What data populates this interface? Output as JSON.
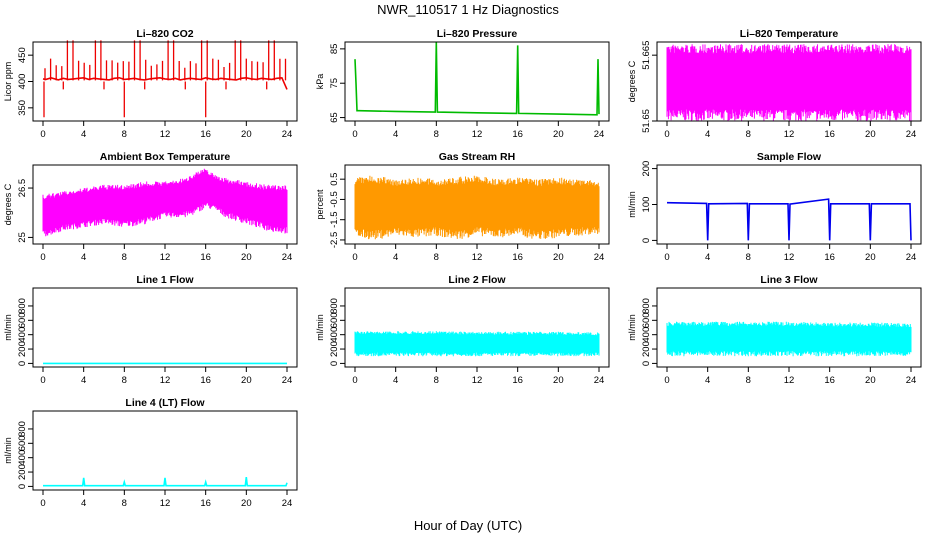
{
  "title": "NWR_110517  1 Hz Diagnostics",
  "xlabel": "Hour of Day (UTC)",
  "colors": {
    "red": "#ee0000",
    "green": "#00bb00",
    "magenta": "#ff00ff",
    "orange": "#ff9900",
    "blue": "#0000ee",
    "cyan": "#00ffff"
  },
  "chart_data": [
    {
      "type": "line",
      "title": "Li–820 CO2",
      "ylabel": "Licor ppm",
      "color": "#ee0000",
      "xlim": [
        0,
        24
      ],
      "ylim": [
        325,
        475
      ],
      "xticks": [
        0,
        4,
        8,
        12,
        16,
        20,
        24
      ],
      "yticks": [
        350,
        400,
        450
      ],
      "series": [
        {
          "name": "",
          "x": [
            0,
            0.3,
            0.8,
            1.5,
            2,
            2.5,
            3,
            3.5,
            4,
            4.5,
            5,
            5.5,
            6,
            6.5,
            7,
            7.5,
            8,
            8.5,
            9,
            9.5,
            10,
            10.5,
            11,
            11.5,
            12,
            12.5,
            13,
            13.5,
            14,
            14.5,
            15,
            15.5,
            16,
            16.5,
            17,
            17.5,
            18,
            18.5,
            19,
            19.5,
            20,
            20.5,
            21,
            21.5,
            22,
            22.5,
            23,
            23.5,
            24
          ],
          "y": [
            405,
            404,
            407,
            403,
            406,
            404,
            405,
            406,
            407,
            404,
            406,
            405,
            404,
            403,
            406,
            407,
            404,
            405,
            406,
            404,
            403,
            405,
            406,
            407,
            405,
            404,
            406,
            403,
            405,
            406,
            405,
            404,
            407,
            405,
            404,
            406,
            405,
            404,
            403,
            406,
            407,
            405,
            404,
            406,
            405,
            404,
            406,
            407,
            385
          ]
        }
      ],
      "annotations": "periodic spikes to ~480 and dips to ~330 ppm"
    },
    {
      "type": "line",
      "title": "Li–820 Pressure",
      "ylabel": "kPa",
      "color": "#00bb00",
      "xlim": [
        0,
        24
      ],
      "ylim": [
        64,
        87
      ],
      "xticks": [
        0,
        4,
        8,
        12,
        16,
        20,
        24
      ],
      "yticks": [
        65,
        75,
        85
      ],
      "series": [
        {
          "name": "",
          "x": [
            0,
            0.1,
            0.2,
            0.4,
            4,
            7.9,
            8,
            8.1,
            12,
            15.9,
            16,
            16.1,
            20,
            23.8,
            23.9,
            24
          ],
          "y": [
            82,
            75,
            67,
            67,
            66.8,
            66.6,
            87,
            66.6,
            66.4,
            66.2,
            86,
            66.2,
            66,
            65.8,
            82,
            66
          ]
        }
      ]
    },
    {
      "type": "area",
      "title": "Li–820 Temperature",
      "ylabel": "degrees C",
      "color": "#ff00ff",
      "xlim": [
        0,
        24
      ],
      "ylim": [
        51.65,
        51.668
      ],
      "xticks": [
        0,
        4,
        8,
        12,
        16,
        20,
        24
      ],
      "yticks": [
        51.65,
        51.665
      ],
      "series": [
        {
          "name": "",
          "x": [
            0,
            24
          ],
          "ymin": [
            51.65,
            51.65
          ],
          "ymax": [
            51.6675,
            51.6675
          ]
        }
      ]
    },
    {
      "type": "area",
      "title": "Ambient Box Temperature",
      "ylabel": "degrees C",
      "color": "#ff00ff",
      "xlim": [
        0,
        24
      ],
      "ylim": [
        24.8,
        27.2
      ],
      "xticks": [
        0,
        4,
        8,
        12,
        16,
        20,
        24
      ],
      "yticks": [
        25.0,
        26.5
      ],
      "series": [
        {
          "name": "",
          "x": [
            0,
            2,
            4,
            6,
            8,
            10,
            12,
            14,
            15,
            16,
            17,
            18,
            20,
            22,
            24
          ],
          "ymin": [
            25.0,
            25.2,
            25.3,
            25.4,
            25.3,
            25.4,
            25.6,
            25.6,
            25.7,
            25.9,
            25.8,
            25.6,
            25.4,
            25.2,
            25.1
          ],
          "ymax": [
            26.3,
            26.4,
            26.5,
            26.6,
            26.6,
            26.7,
            26.7,
            26.8,
            27.0,
            27.1,
            26.9,
            26.8,
            26.7,
            26.6,
            26.6
          ]
        }
      ]
    },
    {
      "type": "area",
      "title": "Gas Stream RH",
      "ylabel": "percent",
      "color": "#ff9900",
      "xlim": [
        0,
        24
      ],
      "ylim": [
        -2.7,
        1.2
      ],
      "xticks": [
        0,
        4,
        8,
        12,
        16,
        20,
        24
      ],
      "yticks": [
        -2.5,
        -1.5,
        -0.5,
        0.5
      ],
      "series": [
        {
          "name": "",
          "x": [
            0,
            2,
            4,
            6,
            8,
            10,
            12,
            14,
            16,
            18,
            20,
            22,
            24
          ],
          "ymin": [
            -2.4,
            -2.5,
            -2.3,
            -2.4,
            -2.3,
            -2.5,
            -2.3,
            -2.4,
            -2.3,
            -2.5,
            -2.4,
            -2.3,
            -2.2
          ],
          "ymax": [
            0.6,
            0.7,
            0.5,
            0.6,
            0.5,
            0.6,
            0.7,
            0.5,
            0.6,
            0.5,
            0.6,
            0.5,
            0.4
          ]
        }
      ]
    },
    {
      "type": "line",
      "title": "Sample Flow",
      "ylabel": "ml/min",
      "color": "#0000ee",
      "xlim": [
        0,
        24
      ],
      "ylim": [
        -10,
        210
      ],
      "xticks": [
        0,
        4,
        8,
        12,
        16,
        20,
        24
      ],
      "yticks": [
        0,
        100,
        200
      ],
      "series": [
        {
          "name": "",
          "x": [
            0,
            3.9,
            4,
            4.1,
            7.9,
            8,
            8.1,
            11.9,
            12,
            12.1,
            15.9,
            16,
            16.1,
            19.9,
            20,
            20.1,
            23.9,
            24
          ],
          "y": [
            105,
            103,
            0,
            102,
            103,
            0,
            102,
            102,
            0,
            101,
            115,
            0,
            102,
            102,
            0,
            102,
            102,
            0
          ]
        }
      ]
    },
    {
      "type": "line",
      "title": "Line 1 Flow",
      "ylabel": "ml/min",
      "color": "#00ffff",
      "xlim": [
        0,
        24
      ],
      "ylim": [
        -50,
        1050
      ],
      "xticks": [
        0,
        4,
        8,
        12,
        16,
        20,
        24
      ],
      "yticks": [
        0,
        200,
        400,
        600,
        800
      ],
      "series": [
        {
          "name": "",
          "x": [
            0,
            24
          ],
          "y": [
            0,
            0
          ]
        }
      ]
    },
    {
      "type": "area",
      "title": "Line 2 Flow",
      "ylabel": "ml/min",
      "color": "#00ffff",
      "xlim": [
        0,
        24
      ],
      "ylim": [
        -50,
        1050
      ],
      "xticks": [
        0,
        4,
        8,
        12,
        16,
        20,
        24
      ],
      "yticks": [
        0,
        200,
        400,
        600,
        800
      ],
      "series": [
        {
          "name": "",
          "x": [
            0,
            4,
            8,
            12,
            16,
            20,
            24
          ],
          "ymin": [
            100,
            100,
            100,
            100,
            100,
            100,
            100
          ],
          "ymax": [
            450,
            450,
            450,
            440,
            440,
            440,
            430
          ]
        }
      ]
    },
    {
      "type": "area",
      "title": "Line 3 Flow",
      "ylabel": "ml/min",
      "color": "#00ffff",
      "xlim": [
        0,
        24
      ],
      "ylim": [
        -50,
        1050
      ],
      "xticks": [
        0,
        4,
        8,
        12,
        16,
        20,
        24
      ],
      "yticks": [
        0,
        200,
        400,
        600,
        800
      ],
      "series": [
        {
          "name": "",
          "x": [
            0,
            4,
            8,
            12,
            16,
            20,
            24
          ],
          "ymin": [
            100,
            100,
            100,
            100,
            100,
            100,
            100
          ],
          "ymax": [
            580,
            580,
            580,
            580,
            570,
            570,
            560
          ]
        }
      ]
    },
    {
      "type": "line",
      "title": "Line 4 (LT) Flow",
      "ylabel": "ml/min",
      "color": "#00ffff",
      "xlim": [
        0,
        24
      ],
      "ylim": [
        -50,
        1050
      ],
      "xticks": [
        0,
        4,
        8,
        12,
        16,
        20,
        24
      ],
      "yticks": [
        0,
        200,
        400,
        600,
        800
      ],
      "series": [
        {
          "name": "",
          "x": [
            0,
            3.9,
            4,
            4.1,
            7.9,
            8,
            8.1,
            11.9,
            12,
            12.1,
            15.9,
            16,
            16.1,
            19.9,
            20,
            20.1,
            23.9,
            24
          ],
          "y": [
            10,
            10,
            120,
            10,
            10,
            60,
            10,
            10,
            120,
            10,
            10,
            60,
            10,
            10,
            130,
            10,
            10,
            50
          ]
        }
      ]
    }
  ]
}
